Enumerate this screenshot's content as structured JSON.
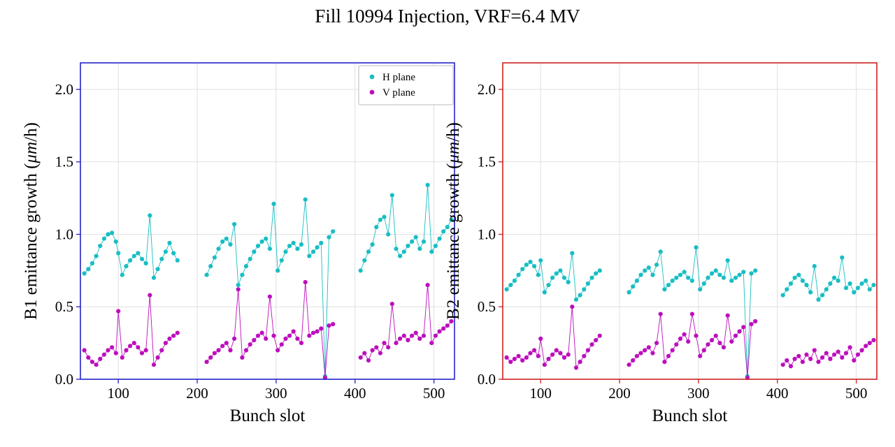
{
  "title": "Fill 10994 Injection, VRF=6.4 MV",
  "chart_data": {
    "type": "scatter",
    "title": "Fill 10994 Injection, VRF=6.4 MV",
    "xlabel": "Bunch slot",
    "xlim": [
      52,
      526
    ],
    "ylim": [
      0,
      2.183
    ],
    "xticks": [
      100,
      200,
      300,
      400,
      500
    ],
    "yticks": [
      0.0,
      0.5,
      1.0,
      1.5,
      2.0
    ],
    "grid": true,
    "grid_color": "#d8d8d8",
    "legend": {
      "position": "upper right",
      "entries": [
        "H plane",
        "V plane"
      ]
    },
    "colors": {
      "h_plane": "#18bec4",
      "v_plane": "#bd0ebd",
      "b1_spine": "#2323c8",
      "b2_spine": "#cd2121"
    },
    "segments": [
      [
        0,
        24
      ],
      [
        25,
        57
      ],
      [
        58,
        81
      ]
    ],
    "x": [
      57,
      62,
      67,
      72,
      77,
      82,
      87,
      92,
      97,
      100,
      105,
      110,
      115,
      120,
      125,
      130,
      135,
      140,
      145,
      150,
      155,
      160,
      165,
      170,
      175,
      212,
      217,
      222,
      227,
      232,
      237,
      242,
      247,
      252,
      257,
      262,
      267,
      272,
      277,
      282,
      287,
      292,
      297,
      302,
      307,
      312,
      317,
      322,
      327,
      332,
      337,
      342,
      347,
      352,
      357,
      362,
      367,
      372,
      407,
      412,
      417,
      422,
      427,
      432,
      437,
      442,
      447,
      452,
      457,
      462,
      467,
      472,
      477,
      482,
      487,
      492,
      497,
      502,
      507,
      512,
      517,
      522
    ],
    "plots": [
      {
        "name": "B1",
        "ylabel": "B1 emittance growth (μm/h)",
        "spine_color": "#2323c8",
        "series": [
          {
            "name": "H plane",
            "color": "#18bec4",
            "y": [
              0.73,
              0.76,
              0.8,
              0.85,
              0.92,
              0.97,
              1.0,
              1.01,
              0.95,
              0.87,
              0.72,
              0.78,
              0.82,
              0.85,
              0.87,
              0.83,
              0.8,
              1.13,
              0.7,
              0.76,
              0.83,
              0.88,
              0.94,
              0.87,
              0.82,
              0.72,
              0.78,
              0.84,
              0.9,
              0.95,
              0.97,
              0.93,
              1.07,
              0.65,
              0.72,
              0.78,
              0.83,
              0.88,
              0.92,
              0.95,
              0.97,
              0.9,
              1.21,
              0.75,
              0.82,
              0.88,
              0.92,
              0.94,
              0.9,
              0.93,
              1.24,
              0.85,
              0.88,
              0.91,
              0.94,
              0.02,
              0.98,
              1.02,
              0.75,
              0.82,
              0.88,
              0.93,
              1.05,
              1.1,
              1.12,
              1.0,
              1.27,
              0.9,
              0.85,
              0.88,
              0.92,
              0.95,
              0.98,
              0.9,
              0.95,
              1.34,
              0.88,
              0.92,
              0.97,
              1.02,
              1.05,
              1.1
            ]
          },
          {
            "name": "V plane",
            "color": "#bd0ebd",
            "y": [
              0.2,
              0.15,
              0.12,
              0.1,
              0.14,
              0.17,
              0.2,
              0.22,
              0.18,
              0.47,
              0.15,
              0.2,
              0.23,
              0.25,
              0.22,
              0.18,
              0.2,
              0.58,
              0.1,
              0.15,
              0.2,
              0.25,
              0.28,
              0.3,
              0.32,
              0.12,
              0.15,
              0.18,
              0.2,
              0.23,
              0.25,
              0.2,
              0.28,
              0.62,
              0.15,
              0.2,
              0.24,
              0.27,
              0.3,
              0.32,
              0.28,
              0.57,
              0.3,
              0.2,
              0.24,
              0.28,
              0.3,
              0.33,
              0.28,
              0.25,
              0.67,
              0.3,
              0.32,
              0.33,
              0.35,
              0.01,
              0.37,
              0.38,
              0.15,
              0.18,
              0.13,
              0.2,
              0.22,
              0.18,
              0.25,
              0.22,
              0.52,
              0.25,
              0.28,
              0.3,
              0.27,
              0.3,
              0.32,
              0.28,
              0.3,
              0.65,
              0.25,
              0.3,
              0.33,
              0.35,
              0.37,
              0.4
            ]
          }
        ]
      },
      {
        "name": "B2",
        "ylabel": "B2 emittance growth (μm/h)",
        "spine_color": "#cd2121",
        "series": [
          {
            "name": "H plane",
            "color": "#18bec4",
            "y": [
              0.62,
              0.65,
              0.68,
              0.72,
              0.76,
              0.79,
              0.81,
              0.78,
              0.72,
              0.82,
              0.6,
              0.65,
              0.7,
              0.73,
              0.75,
              0.7,
              0.67,
              0.87,
              0.55,
              0.58,
              0.62,
              0.66,
              0.7,
              0.73,
              0.75,
              0.6,
              0.64,
              0.68,
              0.72,
              0.75,
              0.77,
              0.72,
              0.79,
              0.88,
              0.62,
              0.65,
              0.68,
              0.7,
              0.72,
              0.74,
              0.7,
              0.68,
              0.91,
              0.62,
              0.66,
              0.7,
              0.73,
              0.75,
              0.72,
              0.7,
              0.82,
              0.68,
              0.7,
              0.72,
              0.74,
              0.02,
              0.73,
              0.75,
              0.58,
              0.62,
              0.66,
              0.7,
              0.72,
              0.68,
              0.65,
              0.6,
              0.78,
              0.55,
              0.58,
              0.62,
              0.66,
              0.7,
              0.68,
              0.84,
              0.63,
              0.66,
              0.6,
              0.63,
              0.66,
              0.68,
              0.62,
              0.65
            ]
          },
          {
            "name": "V plane",
            "color": "#bd0ebd",
            "y": [
              0.15,
              0.12,
              0.14,
              0.16,
              0.13,
              0.15,
              0.18,
              0.2,
              0.16,
              0.28,
              0.1,
              0.14,
              0.17,
              0.2,
              0.18,
              0.15,
              0.17,
              0.5,
              0.08,
              0.12,
              0.16,
              0.2,
              0.24,
              0.27,
              0.3,
              0.1,
              0.13,
              0.16,
              0.18,
              0.2,
              0.22,
              0.18,
              0.25,
              0.45,
              0.12,
              0.16,
              0.2,
              0.24,
              0.28,
              0.31,
              0.26,
              0.45,
              0.3,
              0.16,
              0.2,
              0.24,
              0.27,
              0.3,
              0.25,
              0.22,
              0.44,
              0.26,
              0.3,
              0.33,
              0.36,
              0.01,
              0.38,
              0.4,
              0.1,
              0.13,
              0.09,
              0.14,
              0.16,
              0.12,
              0.17,
              0.14,
              0.2,
              0.12,
              0.15,
              0.18,
              0.14,
              0.17,
              0.19,
              0.15,
              0.18,
              0.22,
              0.13,
              0.17,
              0.2,
              0.23,
              0.25,
              0.27
            ]
          }
        ]
      }
    ]
  }
}
